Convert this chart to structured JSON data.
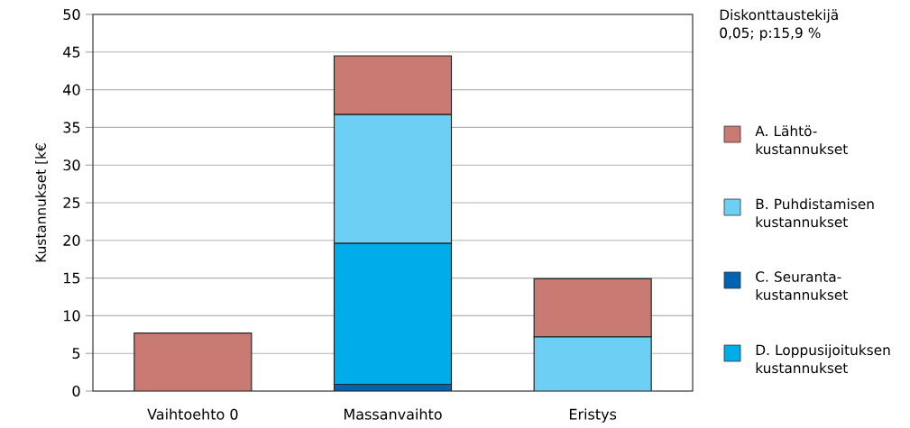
{
  "chart_data": {
    "type": "bar",
    "stacked": true,
    "categories": [
      "Vaihtoehto 0",
      "Massanvaihto",
      "Eristys"
    ],
    "ylabel": "Kustannukset [k€",
    "annotations": [
      "Diskonttaustekijä 0,05; p:15,9 %"
    ],
    "series": [
      {
        "name": "C. Seuranta-kustannukset",
        "color": "#0063b1",
        "values": [
          0,
          0.9,
          0
        ]
      },
      {
        "name": "D. Loppusijoituksen kustannukset",
        "color": "#00adea",
        "values": [
          0,
          18.7,
          0
        ]
      },
      {
        "name": "B. Puhdistamisen kustannukset",
        "color": "#6dcff4",
        "values": [
          0,
          17.1,
          7.2
        ]
      },
      {
        "name": "A. Lähtö-kustannukset",
        "color": "#c97a72",
        "values": [
          7.7,
          7.8,
          7.7
        ]
      }
    ],
    "ylim": [
      0,
      50
    ],
    "yticks": [
      0,
      5,
      10,
      15,
      20,
      25,
      30,
      35,
      40,
      45,
      50
    ],
    "grid": "y",
    "legend": "right"
  }
}
